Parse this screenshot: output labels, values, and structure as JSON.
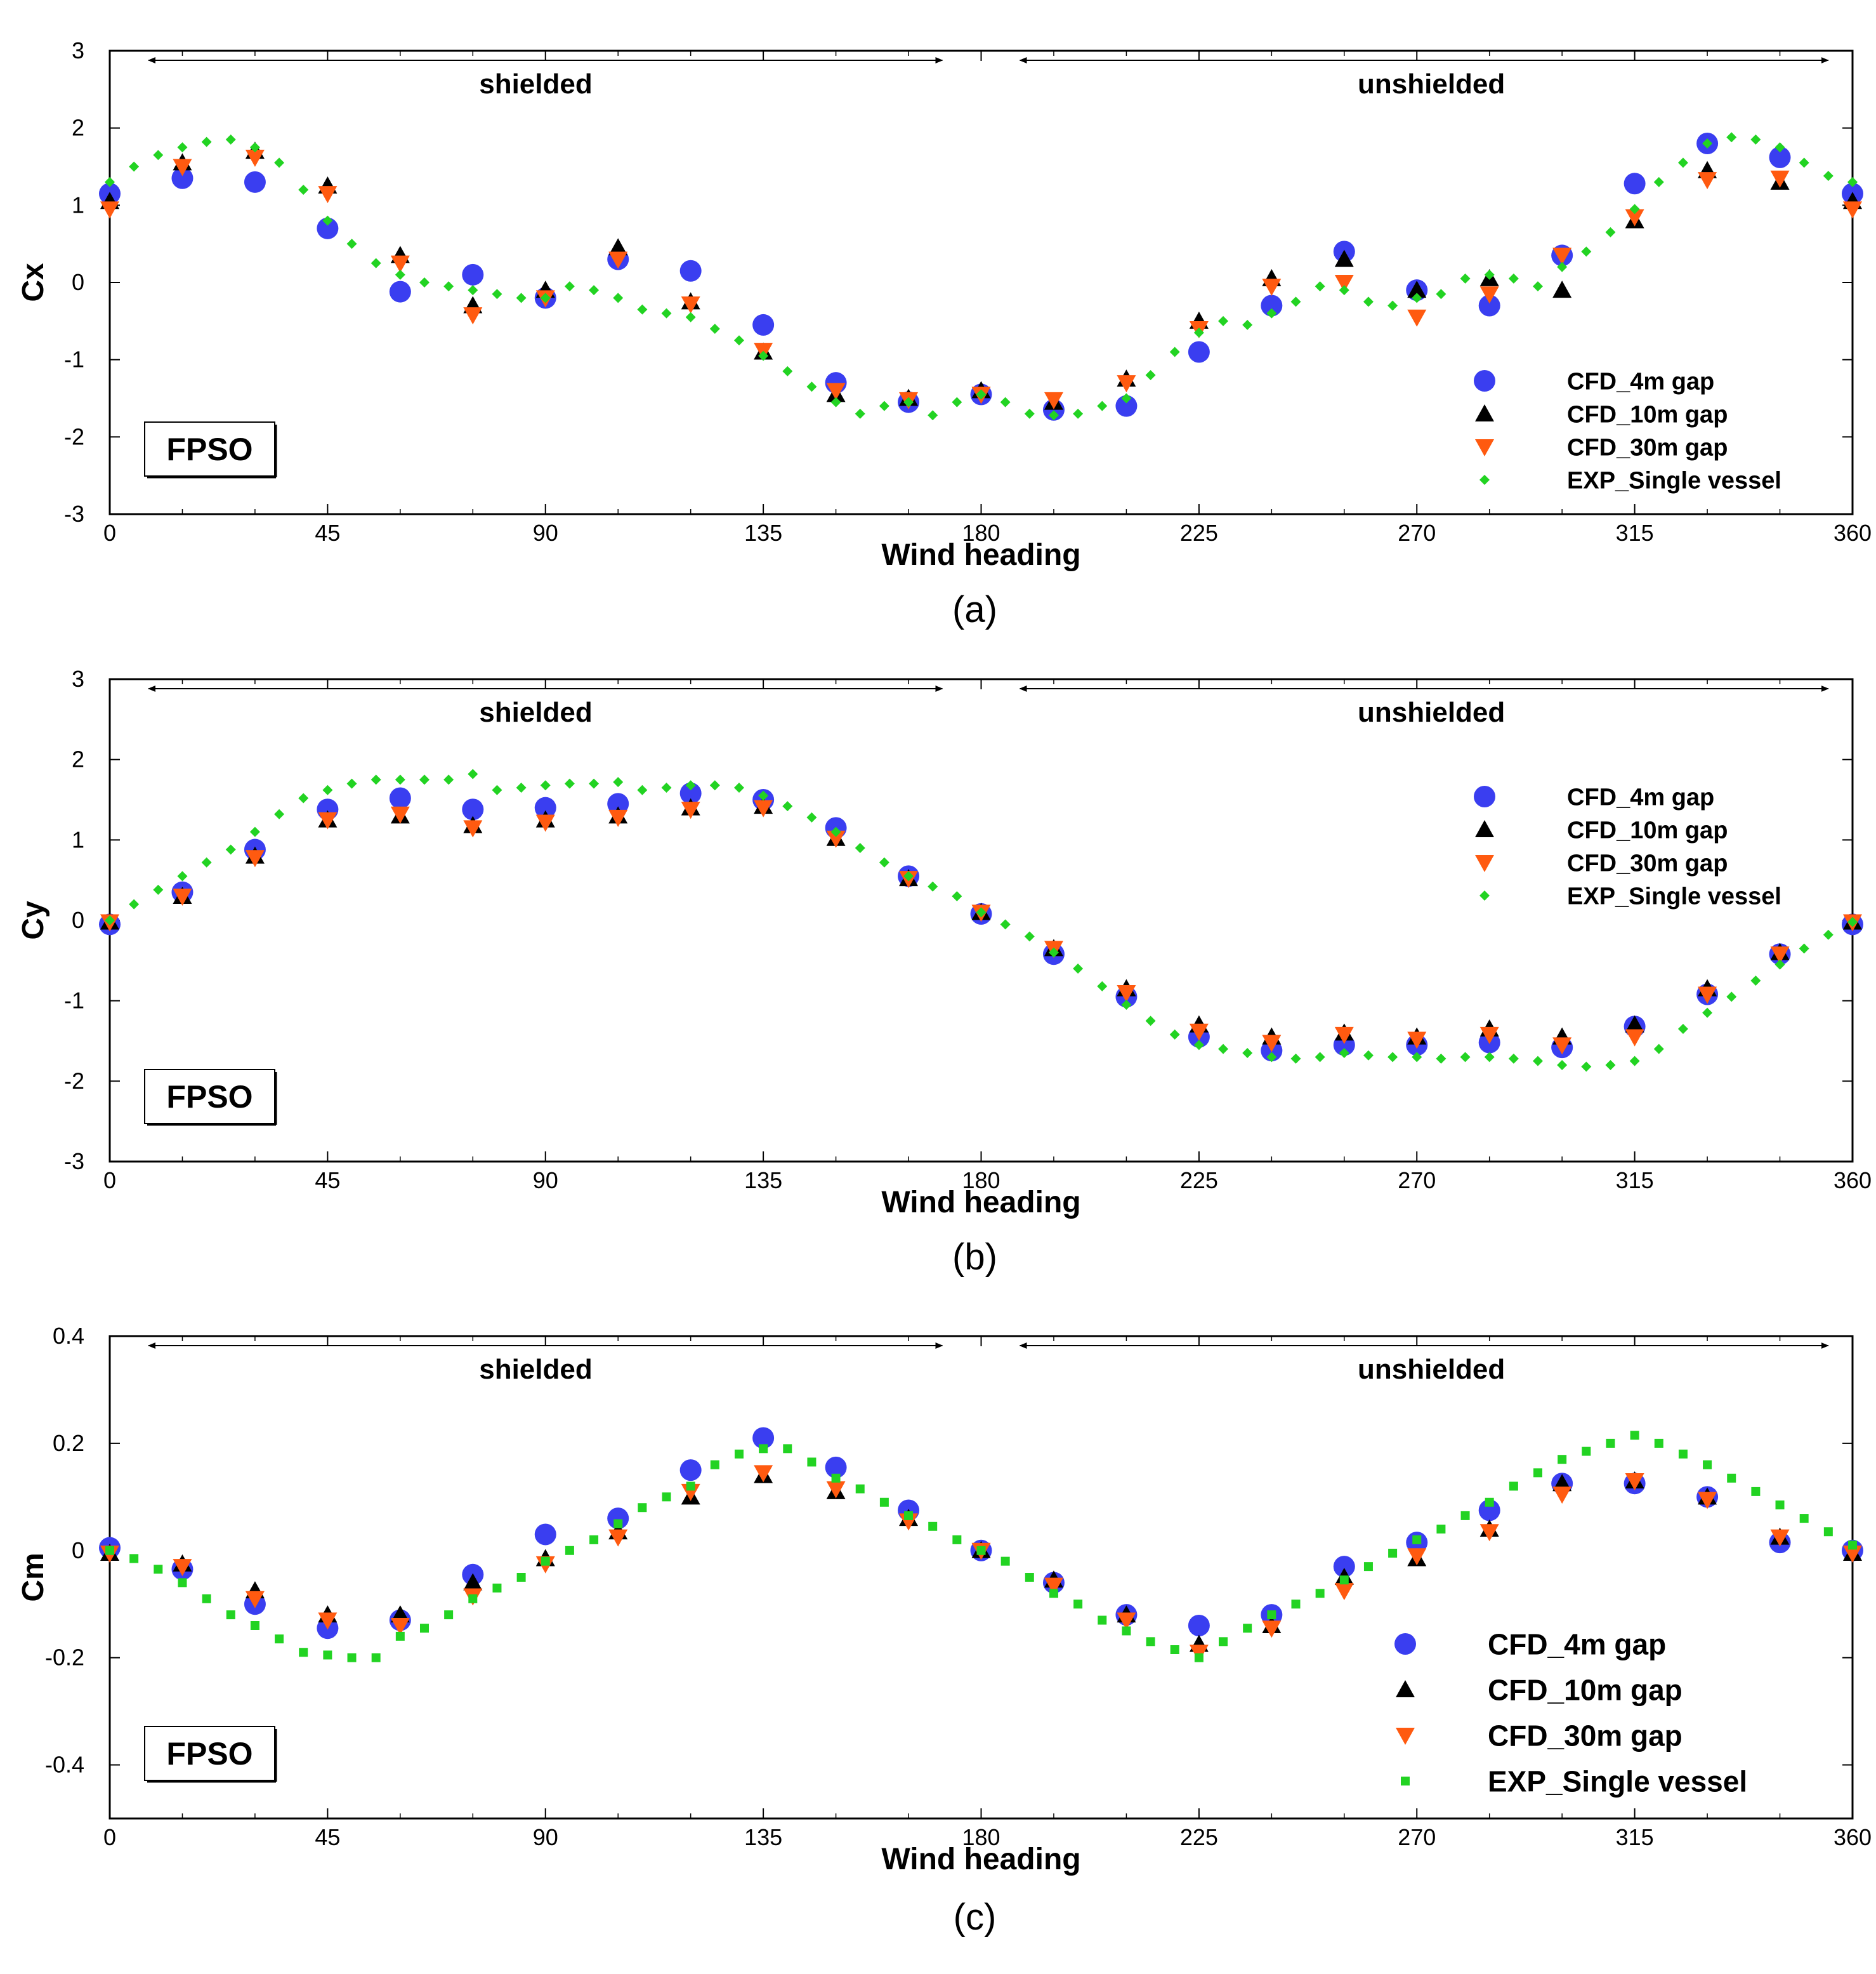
{
  "chart_data": [
    {
      "type": "scatter",
      "panel_label": "(a)",
      "ylabel": "Cx",
      "xlabel": "Wind heading",
      "xlim": [
        0,
        360
      ],
      "ylim": [
        -3,
        3
      ],
      "xticks": [
        "0",
        "45",
        "90",
        "135",
        "180",
        "225",
        "270",
        "315",
        "360"
      ],
      "yticks": [
        "-3",
        "-2",
        "-1",
        "0",
        "1",
        "2",
        "3"
      ],
      "box_label": "FPSO",
      "region_labels": [
        "shielded",
        "unshielded"
      ],
      "x": [
        0,
        15,
        30,
        45,
        60,
        75,
        90,
        105,
        120,
        135,
        150,
        165,
        180,
        195,
        210,
        225,
        240,
        255,
        270,
        285,
        300,
        315,
        330,
        345,
        360
      ],
      "series": [
        {
          "name": "CFD_4m gap",
          "values": [
            1.15,
            1.35,
            1.3,
            0.7,
            -0.12,
            0.1,
            -0.2,
            0.3,
            0.15,
            -0.55,
            -1.3,
            -1.55,
            -1.45,
            -1.65,
            -1.6,
            -0.9,
            -0.3,
            0.4,
            -0.1,
            -0.3,
            0.35,
            1.28,
            1.8,
            1.62,
            1.15
          ]
        },
        {
          "name": "CFD_10m gap",
          "values": [
            1.05,
            1.55,
            1.7,
            1.25,
            0.35,
            -0.3,
            -0.1,
            0.45,
            -0.25,
            -0.9,
            -1.45,
            -1.5,
            -1.4,
            -1.55,
            -1.25,
            -0.5,
            0.05,
            0.3,
            -0.1,
            0.05,
            -0.1,
            0.8,
            1.45,
            1.3,
            1.05
          ]
        },
        {
          "name": "CFD_30m gap",
          "values": [
            0.95,
            1.5,
            1.62,
            1.15,
            0.25,
            -0.42,
            -0.2,
            0.3,
            -0.28,
            -0.88,
            -1.4,
            -1.52,
            -1.45,
            -1.52,
            -1.3,
            -0.6,
            -0.05,
            0.0,
            -0.45,
            -0.15,
            0.35,
            0.85,
            1.33,
            1.35,
            0.95
          ]
        },
        {
          "name": "EXP_Single vessel",
          "x": [
            0,
            5,
            10,
            15,
            20,
            25,
            30,
            35,
            40,
            45,
            50,
            55,
            60,
            65,
            70,
            75,
            80,
            85,
            90,
            95,
            100,
            105,
            110,
            115,
            120,
            125,
            130,
            135,
            140,
            145,
            150,
            155,
            160,
            165,
            170,
            175,
            180,
            185,
            190,
            195,
            200,
            205,
            210,
            215,
            220,
            225,
            230,
            235,
            240,
            245,
            250,
            255,
            260,
            265,
            270,
            275,
            280,
            285,
            290,
            295,
            300,
            305,
            310,
            315,
            320,
            325,
            330,
            335,
            340,
            345,
            350,
            355,
            360
          ],
          "values": [
            1.3,
            1.5,
            1.65,
            1.75,
            1.82,
            1.85,
            1.75,
            1.55,
            1.2,
            0.8,
            0.5,
            0.25,
            0.1,
            0.0,
            -0.05,
            -0.1,
            -0.15,
            -0.2,
            -0.2,
            -0.05,
            -0.1,
            -0.2,
            -0.35,
            -0.4,
            -0.45,
            -0.6,
            -0.75,
            -0.95,
            -1.15,
            -1.35,
            -1.55,
            -1.7,
            -1.6,
            -1.55,
            -1.72,
            -1.55,
            -1.45,
            -1.55,
            -1.7,
            -1.72,
            -1.7,
            -1.6,
            -1.5,
            -1.2,
            -0.9,
            -0.65,
            -0.5,
            -0.55,
            -0.4,
            -0.25,
            -0.05,
            -0.1,
            -0.25,
            -0.3,
            -0.2,
            -0.15,
            0.05,
            0.1,
            0.05,
            -0.05,
            0.2,
            0.4,
            0.65,
            0.95,
            1.3,
            1.55,
            1.8,
            1.88,
            1.85,
            1.75,
            1.55,
            1.38,
            1.3
          ]
        }
      ]
    },
    {
      "type": "scatter",
      "panel_label": "(b)",
      "ylabel": "Cy",
      "xlabel": "Wind heading",
      "xlim": [
        0,
        360
      ],
      "ylim": [
        -3,
        3
      ],
      "xticks": [
        "0",
        "45",
        "90",
        "135",
        "180",
        "225",
        "270",
        "315",
        "360"
      ],
      "yticks": [
        "-3",
        "-2",
        "-1",
        "0",
        "1",
        "2",
        "3"
      ],
      "box_label": "FPSO",
      "region_labels": [
        "shielded",
        "unshielded"
      ],
      "x": [
        0,
        15,
        30,
        45,
        60,
        75,
        90,
        105,
        120,
        135,
        150,
        165,
        180,
        195,
        210,
        225,
        240,
        255,
        270,
        285,
        300,
        315,
        330,
        345,
        360
      ],
      "series": [
        {
          "name": "CFD_4m gap",
          "values": [
            -0.05,
            0.35,
            0.88,
            1.38,
            1.52,
            1.38,
            1.4,
            1.45,
            1.58,
            1.5,
            1.15,
            0.55,
            0.08,
            -0.42,
            -0.95,
            -1.45,
            -1.62,
            -1.55,
            -1.55,
            -1.52,
            -1.58,
            -1.32,
            -0.92,
            -0.42,
            -0.05
          ]
        },
        {
          "name": "CFD_10m gap",
          "values": [
            -0.02,
            0.3,
            0.8,
            1.25,
            1.3,
            1.18,
            1.25,
            1.3,
            1.4,
            1.42,
            1.02,
            0.52,
            0.1,
            -0.35,
            -0.85,
            -1.3,
            -1.45,
            -1.4,
            -1.45,
            -1.35,
            -1.45,
            -1.3,
            -0.85,
            -0.4,
            -0.02
          ]
        },
        {
          "name": "CFD_30m gap",
          "values": [
            -0.02,
            0.3,
            0.78,
            1.25,
            1.32,
            1.15,
            1.22,
            1.28,
            1.38,
            1.4,
            1.02,
            0.52,
            0.1,
            -0.35,
            -0.9,
            -1.38,
            -1.52,
            -1.42,
            -1.48,
            -1.42,
            -1.55,
            -1.45,
            -0.92,
            -0.42,
            -0.02
          ]
        },
        {
          "name": "EXP_Single vessel",
          "x": [
            0,
            5,
            10,
            15,
            20,
            25,
            30,
            35,
            40,
            45,
            50,
            55,
            60,
            65,
            70,
            75,
            80,
            85,
            90,
            95,
            100,
            105,
            110,
            115,
            120,
            125,
            130,
            135,
            140,
            145,
            150,
            155,
            160,
            165,
            170,
            175,
            180,
            185,
            190,
            195,
            200,
            205,
            210,
            215,
            220,
            225,
            230,
            235,
            240,
            245,
            250,
            255,
            260,
            265,
            270,
            275,
            280,
            285,
            290,
            295,
            300,
            305,
            310,
            315,
            320,
            325,
            330,
            335,
            340,
            345,
            350,
            355,
            360
          ],
          "values": [
            0.0,
            0.2,
            0.38,
            0.55,
            0.72,
            0.88,
            1.1,
            1.32,
            1.52,
            1.62,
            1.7,
            1.75,
            1.75,
            1.75,
            1.75,
            1.82,
            1.62,
            1.65,
            1.68,
            1.7,
            1.7,
            1.72,
            1.62,
            1.65,
            1.68,
            1.68,
            1.65,
            1.55,
            1.42,
            1.28,
            1.1,
            0.9,
            0.72,
            0.55,
            0.42,
            0.3,
            0.1,
            -0.05,
            -0.2,
            -0.4,
            -0.6,
            -0.82,
            -1.05,
            -1.25,
            -1.42,
            -1.55,
            -1.6,
            -1.65,
            -1.7,
            -1.72,
            -1.7,
            -1.65,
            -1.68,
            -1.7,
            -1.7,
            -1.72,
            -1.7,
            -1.7,
            -1.72,
            -1.75,
            -1.8,
            -1.82,
            -1.8,
            -1.75,
            -1.6,
            -1.35,
            -1.15,
            -0.95,
            -0.75,
            -0.55,
            -0.35,
            -0.18,
            -0.02
          ]
        }
      ]
    },
    {
      "type": "scatter",
      "panel_label": "(c)",
      "ylabel": "Cm",
      "xlabel": "Wind heading",
      "xlim": [
        0,
        360
      ],
      "ylim": [
        -0.5,
        0.4
      ],
      "xticks": [
        "0",
        "45",
        "90",
        "135",
        "180",
        "225",
        "270",
        "315",
        "360"
      ],
      "yticks": [
        "-0.4",
        "-0.2",
        "0",
        "0.2",
        "0.4"
      ],
      "box_label": "FPSO",
      "region_labels": [
        "shielded",
        "unshielded"
      ],
      "x": [
        0,
        15,
        30,
        45,
        60,
        75,
        90,
        105,
        120,
        135,
        150,
        165,
        180,
        195,
        210,
        225,
        240,
        255,
        270,
        285,
        300,
        315,
        330,
        345,
        360
      ],
      "series": [
        {
          "name": "CFD_4m gap",
          "values": [
            0.005,
            -0.035,
            -0.1,
            -0.145,
            -0.13,
            -0.045,
            0.03,
            0.06,
            0.15,
            0.21,
            0.155,
            0.075,
            0.0,
            -0.06,
            -0.12,
            -0.14,
            -0.12,
            -0.03,
            0.015,
            0.075,
            0.125,
            0.125,
            0.1,
            0.015,
            0.0
          ]
        },
        {
          "name": "CFD_10m gap",
          "values": [
            -0.005,
            -0.025,
            -0.075,
            -0.12,
            -0.12,
            -0.06,
            -0.015,
            0.035,
            0.1,
            0.14,
            0.11,
            0.06,
            0.0,
            -0.055,
            -0.12,
            -0.175,
            -0.14,
            -0.05,
            -0.015,
            0.04,
            0.125,
            0.13,
            0.1,
            0.025,
            -0.005
          ]
        },
        {
          "name": "CFD_30m gap",
          "values": [
            -0.005,
            -0.03,
            -0.09,
            -0.13,
            -0.14,
            -0.085,
            -0.025,
            0.025,
            0.11,
            0.145,
            0.115,
            0.055,
            0.0,
            -0.065,
            -0.13,
            -0.19,
            -0.145,
            -0.075,
            -0.01,
            0.035,
            0.105,
            0.13,
            0.095,
            0.025,
            -0.005
          ]
        },
        {
          "name": "EXP_Single vessel",
          "x": [
            0,
            5,
            10,
            15,
            20,
            25,
            30,
            35,
            40,
            45,
            50,
            55,
            60,
            65,
            70,
            75,
            80,
            85,
            90,
            95,
            100,
            105,
            110,
            115,
            120,
            125,
            130,
            135,
            140,
            145,
            150,
            155,
            160,
            165,
            170,
            175,
            180,
            185,
            190,
            195,
            200,
            205,
            210,
            215,
            220,
            225,
            230,
            235,
            240,
            245,
            250,
            255,
            260,
            265,
            270,
            275,
            280,
            285,
            290,
            295,
            300,
            305,
            310,
            315,
            320,
            325,
            330,
            335,
            340,
            345,
            350,
            355,
            360
          ],
          "values": [
            0.0,
            -0.015,
            -0.035,
            -0.06,
            -0.09,
            -0.12,
            -0.14,
            -0.165,
            -0.19,
            -0.195,
            -0.2,
            -0.2,
            -0.16,
            -0.145,
            -0.12,
            -0.09,
            -0.07,
            -0.05,
            -0.02,
            0.0,
            0.02,
            0.05,
            0.08,
            0.1,
            0.12,
            0.16,
            0.18,
            0.19,
            0.19,
            0.165,
            0.135,
            0.115,
            0.09,
            0.065,
            0.045,
            0.02,
            0.0,
            -0.02,
            -0.05,
            -0.08,
            -0.1,
            -0.13,
            -0.15,
            -0.17,
            -0.185,
            -0.2,
            -0.17,
            -0.145,
            -0.12,
            -0.1,
            -0.08,
            -0.055,
            -0.03,
            -0.005,
            0.02,
            0.04,
            0.065,
            0.09,
            0.12,
            0.145,
            0.17,
            0.185,
            0.2,
            0.215,
            0.2,
            0.18,
            0.16,
            0.135,
            0.11,
            0.085,
            0.06,
            0.035,
            0.01
          ]
        }
      ]
    }
  ]
}
